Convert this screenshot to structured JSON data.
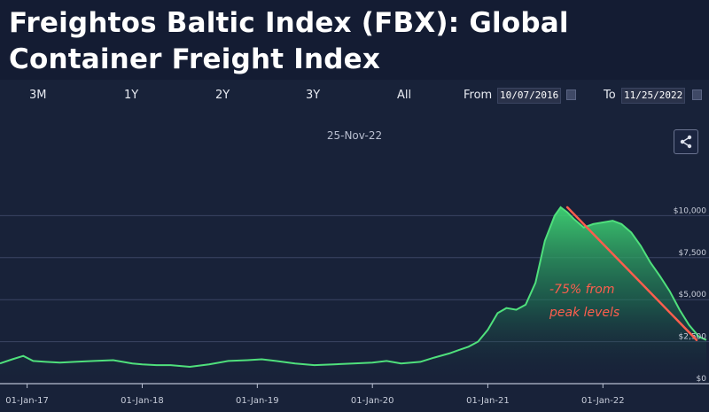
{
  "title": "Freightos Baltic Index (FBX): Global Container Freight Index",
  "range_buttons": [
    "3M",
    "1Y",
    "2Y",
    "3Y",
    "All"
  ],
  "from_label": "From",
  "from_value": "10/07/2016",
  "to_label": "To",
  "to_value": "11/25/2022",
  "subtitle": "25-Nov-22",
  "colors": {
    "line": "#4fe07c",
    "annotation": "#ff5e4d"
  },
  "chart_data": {
    "type": "area",
    "x": [
      "2016-10-07",
      "2016-11-15",
      "2016-12-20",
      "2017-01-20",
      "2017-03-01",
      "2017-04-15",
      "2017-06-01",
      "2017-08-01",
      "2017-10-01",
      "2017-12-01",
      "2018-01-01",
      "2018-02-15",
      "2018-04-01",
      "2018-06-01",
      "2018-08-01",
      "2018-10-01",
      "2018-12-01",
      "2019-01-15",
      "2019-03-01",
      "2019-05-01",
      "2019-07-01",
      "2019-09-01",
      "2019-11-01",
      "2020-01-01",
      "2020-02-15",
      "2020-04-01",
      "2020-06-01",
      "2020-07-15",
      "2020-09-01",
      "2020-10-01",
      "2020-11-01",
      "2020-12-01",
      "2021-01-01",
      "2021-02-01",
      "2021-03-01",
      "2021-04-01",
      "2021-05-01",
      "2021-06-01",
      "2021-07-01",
      "2021-08-01",
      "2021-08-20",
      "2021-09-10",
      "2021-10-01",
      "2021-11-01",
      "2021-12-01",
      "2022-01-01",
      "2022-02-01",
      "2022-03-01",
      "2022-04-01",
      "2022-05-01",
      "2022-06-01",
      "2022-07-01",
      "2022-08-01",
      "2022-09-01",
      "2022-10-01",
      "2022-11-01",
      "2022-11-25"
    ],
    "y": [
      1200,
      1450,
      1650,
      1350,
      1300,
      1250,
      1300,
      1350,
      1400,
      1200,
      1150,
      1100,
      1100,
      1000,
      1150,
      1350,
      1400,
      1450,
      1350,
      1200,
      1100,
      1150,
      1200,
      1250,
      1350,
      1200,
      1300,
      1550,
      1800,
      2000,
      2200,
      2500,
      3200,
      4200,
      4500,
      4400,
      4700,
      6000,
      8500,
      10000,
      10500,
      10200,
      9800,
      9300,
      9500,
      9600,
      9700,
      9500,
      9000,
      8200,
      7200,
      6400,
      5500,
      4400,
      3500,
      2800,
      2600
    ],
    "xticks": [
      "01-Jan-17",
      "01-Jan-18",
      "01-Jan-19",
      "01-Jan-20",
      "01-Jan-21",
      "01-Jan-22"
    ],
    "yticks": [
      "$0",
      "$2,500",
      "$5,000",
      "$7,500",
      "$10,000"
    ],
    "ylim": [
      0,
      12500
    ],
    "annotation": {
      "text_line1": "-75% from",
      "text_line2": "peak levels",
      "from": [
        "2021-09-10",
        10500
      ],
      "to": [
        "2022-10-25",
        2600
      ]
    },
    "grid": true
  }
}
